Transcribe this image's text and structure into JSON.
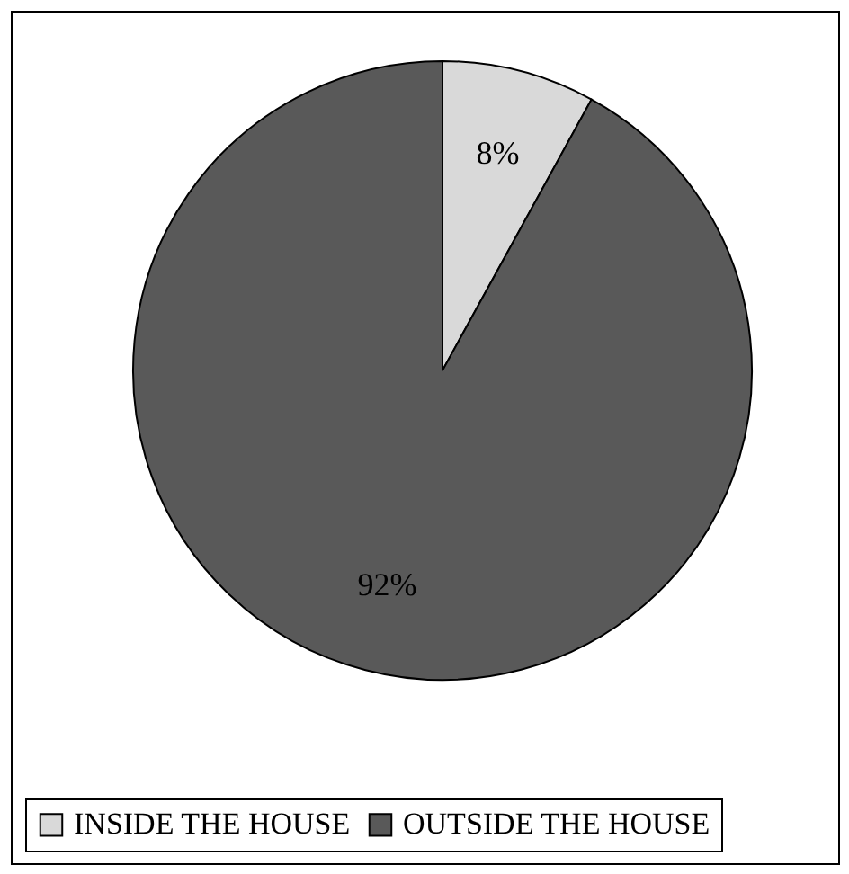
{
  "chart_data": {
    "type": "pie",
    "categories": [
      "INSIDE THE HOUSE",
      "OUTSIDE THE HOUSE"
    ],
    "values": [
      8,
      92
    ],
    "value_labels": [
      "8%",
      "92%"
    ],
    "colors": [
      "#d9d9d9",
      "#595959"
    ],
    "legend": "bottom"
  }
}
